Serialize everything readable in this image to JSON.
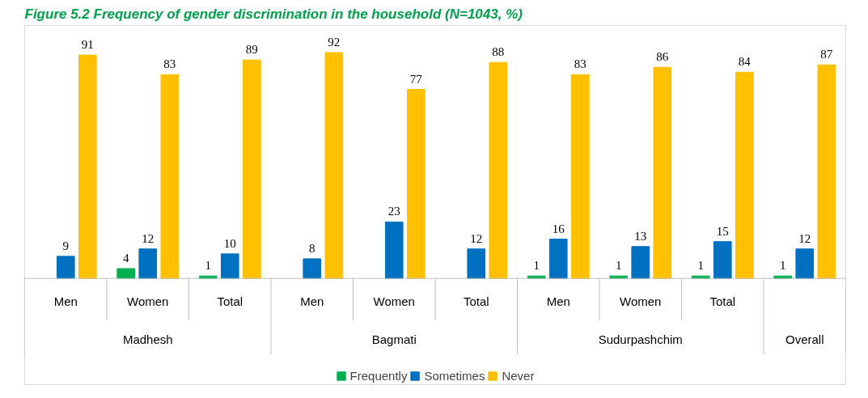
{
  "chart_data": {
    "type": "bar",
    "title": "Figure 5.2 Frequency of gender discrimination in the household (N=1043, %)",
    "categories": [
      "Men",
      "Women",
      "Total",
      "Men",
      "Women",
      "Total",
      "Men",
      "Women",
      "Total",
      null
    ],
    "annotations": [
      "Madhesh",
      "Bagmati",
      "Sudurpashchim",
      "Overall"
    ],
    "series": [
      {
        "name": "Frequently",
        "color": "#00b050",
        "values": [
          null,
          4,
          1,
          null,
          null,
          null,
          1,
          1,
          1,
          1
        ]
      },
      {
        "name": "Sometimes",
        "color": "#0070c0",
        "values": [
          9,
          12,
          10,
          8,
          23,
          12,
          16,
          13,
          15,
          12
        ]
      },
      {
        "name": "Never",
        "color": "#ffc000",
        "values": [
          91,
          83,
          89,
          92,
          77,
          88,
          83,
          86,
          84,
          87
        ]
      }
    ],
    "data_labels": true,
    "legend": "bottom"
  }
}
